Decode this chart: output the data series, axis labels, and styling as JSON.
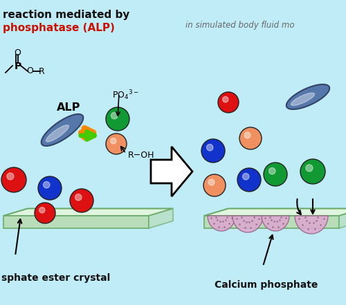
{
  "bg_color": "#c0ecf8",
  "title1": "reaction mediated by",
  "title2_red": "phosphatase (ALP)",
  "subtitle": "in simulated body fluid mo",
  "label_left": "sphate ester crystal",
  "label_right": "Calcium phosphate",
  "platform_top": "#e0f5e0",
  "platform_side": "#b8ddb8",
  "platform_edge": "#6aaa6a",
  "sphere_red": "#dd1111",
  "sphere_blue": "#1133cc",
  "sphere_green": "#119933",
  "sphere_orange": "#f09060",
  "capsule_col": "#5577aa",
  "capsule_edge": "#334466",
  "arrow_green": "#44cc00",
  "arrow_orange": "#ff8800",
  "deposit_col": "#dbaacf",
  "deposit_edge": "#996688",
  "text_black": "#111111",
  "text_red": "#cc1100",
  "subtitle_color": "#666666"
}
